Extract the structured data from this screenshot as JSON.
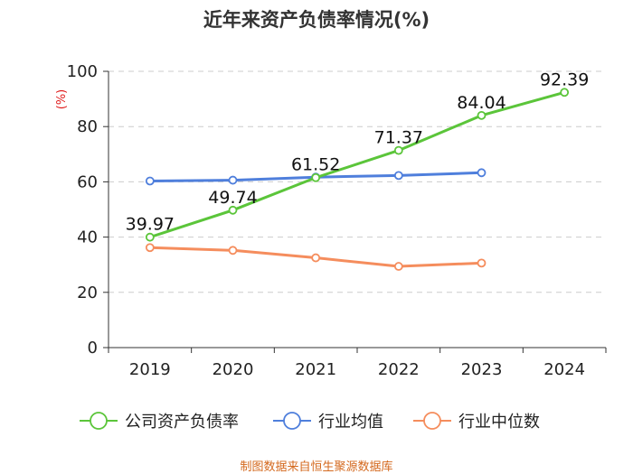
{
  "chart_data": {
    "type": "line",
    "title": "近年来资产负债率情况(%)",
    "ylabel": "(%)",
    "xlabel": "",
    "categories": [
      "2019",
      "2020",
      "2021",
      "2022",
      "2023",
      "2024"
    ],
    "ylim": [
      0,
      100
    ],
    "yticks": [
      0,
      20,
      40,
      60,
      80,
      100
    ],
    "grid": true,
    "legend_position": "bottom",
    "series": [
      {
        "name": "公司资产负债率",
        "color": "#5bc53a",
        "values": [
          39.97,
          49.74,
          61.52,
          71.37,
          84.04,
          92.39
        ],
        "labels": [
          "39.97",
          "49.74",
          "61.52",
          "71.37",
          "84.04",
          "92.39"
        ]
      },
      {
        "name": "行业均值",
        "color": "#4f7fdc",
        "values": [
          60.3,
          60.6,
          61.7,
          62.3,
          63.3,
          null
        ]
      },
      {
        "name": "行业中位数",
        "color": "#f58d5d",
        "values": [
          36.2,
          35.2,
          32.5,
          29.4,
          30.6,
          null
        ]
      }
    ]
  },
  "footer": {
    "source": "制图数据来自恒生聚源数据库"
  }
}
